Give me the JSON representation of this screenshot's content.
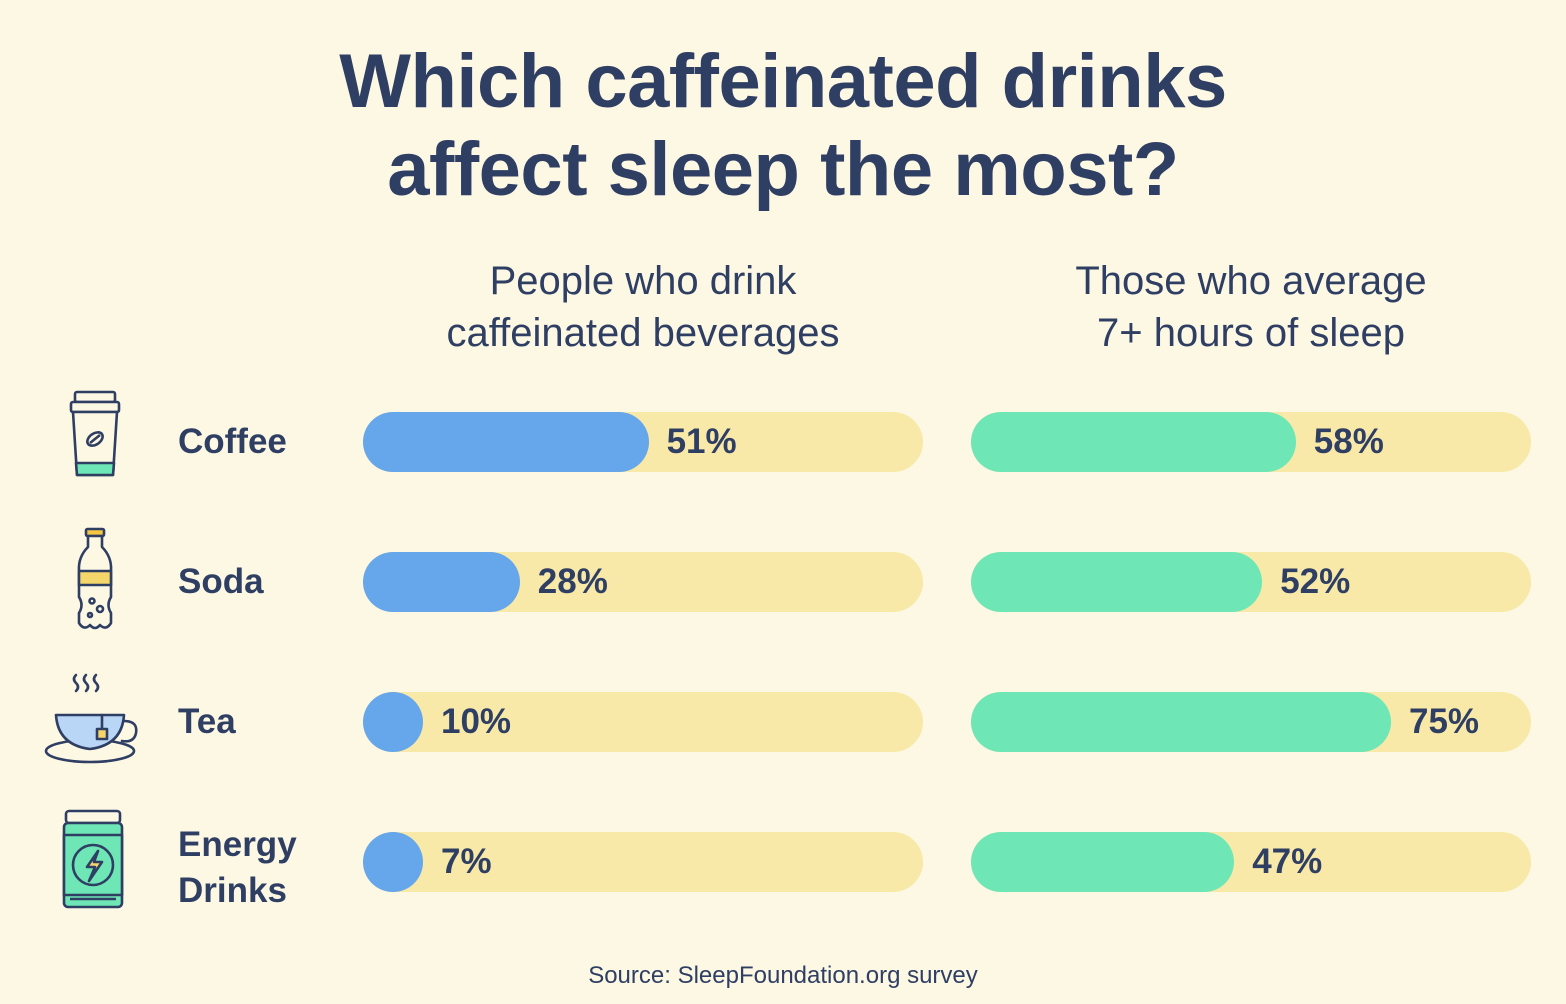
{
  "chart_data": {
    "type": "bar",
    "title": "Which caffeinated drinks affect sleep the most?",
    "title_lines": [
      "Which caffeinated drinks",
      "affect sleep the most?"
    ],
    "categories": [
      "Coffee",
      "Soda",
      "Tea",
      "Energy Drinks"
    ],
    "category_lines": [
      [
        "Coffee"
      ],
      [
        "Soda"
      ],
      [
        "Tea"
      ],
      [
        "Energy",
        "Drinks"
      ]
    ],
    "icons": [
      "coffee-cup-icon",
      "soda-bottle-icon",
      "tea-cup-icon",
      "energy-drink-can-icon"
    ],
    "series": [
      {
        "name": "People who drink caffeinated beverages",
        "name_lines": [
          "People who drink",
          "caffeinated beverages"
        ],
        "values": [
          51,
          28,
          10,
          7
        ],
        "labels": [
          "51%",
          "28%",
          "10%",
          "7%"
        ],
        "color": "#66a6ea"
      },
      {
        "name": "Those who average 7+ hours of sleep",
        "name_lines": [
          "Those who average",
          "7+ hours of sleep"
        ],
        "values": [
          58,
          52,
          75,
          47
        ],
        "labels": [
          "58%",
          "52%",
          "75%",
          "47%"
        ],
        "color": "#6ee6b6"
      }
    ],
    "track_color": "#f8e9a8",
    "ylim": [
      0,
      100
    ],
    "source": "Source: SleepFoundation.org survey"
  }
}
